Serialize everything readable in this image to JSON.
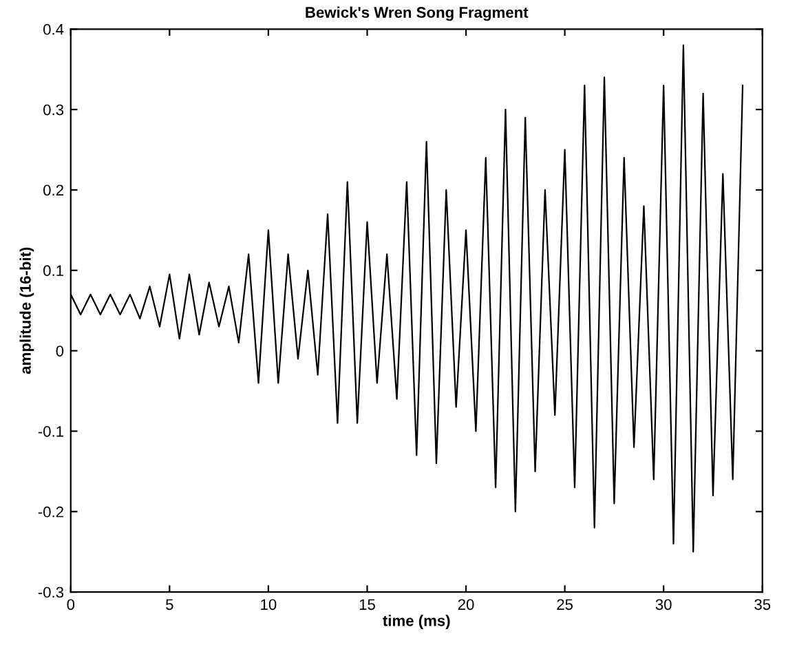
{
  "chart_data": {
    "type": "line",
    "title": "Bewick's Wren Song Fragment",
    "xlabel": "time (ms)",
    "ylabel": "amplitude (16-bit)",
    "xlim": [
      0,
      35
    ],
    "xticks": [
      0,
      5,
      10,
      15,
      20,
      25,
      30,
      35
    ],
    "ylim": [
      -0.3,
      0.4
    ],
    "yticks": [
      -0.3,
      -0.2,
      -0.1,
      0,
      0.1,
      0.2,
      0.3,
      0.4
    ],
    "grid": false,
    "legend": false,
    "marker": "none",
    "line_style": "solid",
    "x": [
      0,
      0.5,
      1,
      1.5,
      2,
      2.5,
      3,
      3.5,
      4,
      4.5,
      5,
      5.5,
      6,
      6.5,
      7,
      7.5,
      8,
      8.5,
      9,
      9.5,
      10,
      10.5,
      11,
      11.5,
      12,
      12.5,
      13,
      13.5,
      14,
      14.5,
      15,
      15.5,
      16,
      16.5,
      17,
      17.5,
      18,
      18.5,
      19,
      19.5,
      20,
      20.5,
      21,
      21.5,
      22,
      22.5,
      23,
      23.5,
      24,
      24.5,
      25,
      25.5,
      26,
      26.5,
      27,
      27.5,
      28,
      28.5,
      29,
      29.5,
      30,
      30.5,
      31,
      31.5,
      32,
      32.5,
      33,
      33.5,
      34
    ],
    "series": [
      {
        "color": "#000000",
        "values": [
          0.07,
          0.045,
          0.07,
          0.045,
          0.07,
          0.045,
          0.07,
          0.04,
          0.08,
          0.03,
          0.095,
          0.015,
          0.095,
          0.02,
          0.085,
          0.03,
          0.08,
          0.01,
          0.12,
          -0.04,
          0.15,
          -0.04,
          0.12,
          -0.01,
          0.1,
          -0.03,
          0.17,
          -0.09,
          0.21,
          -0.09,
          0.16,
          -0.04,
          0.12,
          -0.06,
          0.21,
          -0.13,
          0.26,
          -0.14,
          0.2,
          -0.07,
          0.15,
          -0.1,
          0.24,
          -0.17,
          0.3,
          -0.2,
          0.29,
          -0.15,
          0.2,
          -0.08,
          0.25,
          -0.17,
          0.33,
          -0.22,
          0.34,
          -0.19,
          0.24,
          -0.12,
          0.18,
          -0.16,
          0.33,
          -0.24,
          0.38,
          -0.25,
          0.32,
          -0.18,
          0.22,
          -0.16,
          0.33
        ]
      }
    ]
  }
}
